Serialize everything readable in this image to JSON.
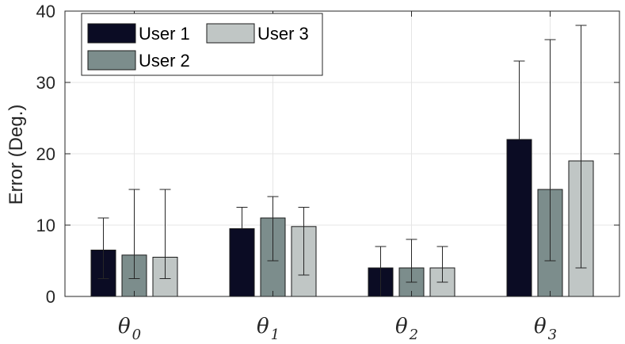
{
  "chart_data": {
    "type": "bar",
    "title": "",
    "xlabel": "",
    "ylabel": "Error (Deg.)",
    "ylim": [
      0,
      40
    ],
    "yticks": [
      0,
      10,
      20,
      30,
      40
    ],
    "grid": true,
    "legend_position": "top-left",
    "categories": [
      {
        "symbol": "θ",
        "subscript": "0"
      },
      {
        "symbol": "θ",
        "subscript": "1"
      },
      {
        "symbol": "θ",
        "subscript": "2"
      },
      {
        "symbol": "θ",
        "subscript": "3"
      }
    ],
    "series": [
      {
        "name": "User 1",
        "color": "#0b0c24",
        "values": [
          6.5,
          9.5,
          4.0,
          22.0
        ],
        "err_low": [
          2.5,
          9.5,
          0.0,
          22.0
        ],
        "err_high": [
          11.0,
          12.5,
          7.0,
          33.0
        ]
      },
      {
        "name": "User 2",
        "color": "#7c8d8c",
        "values": [
          5.8,
          11.0,
          4.0,
          15.0
        ],
        "err_low": [
          2.5,
          5.0,
          2.0,
          5.0
        ],
        "err_high": [
          15.0,
          14.0,
          8.0,
          36.0
        ]
      },
      {
        "name": "User 3",
        "color": "#c0c6c5",
        "values": [
          5.5,
          9.8,
          4.0,
          19.0
        ],
        "err_low": [
          2.5,
          3.0,
          2.0,
          4.0
        ],
        "err_high": [
          15.0,
          12.5,
          7.0,
          38.0
        ]
      }
    ]
  }
}
